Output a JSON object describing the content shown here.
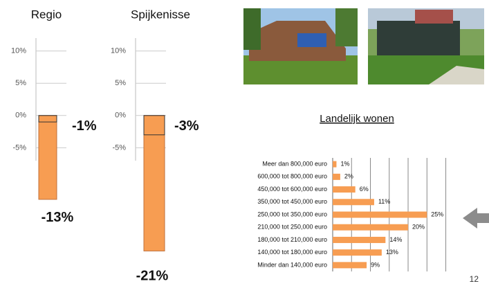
{
  "page_number": "12",
  "chart_data": [
    {
      "type": "bar",
      "title": "Regio",
      "series": [
        {
          "values": [
            -13
          ],
          "value_labels": [
            "-13%"
          ],
          "color": "#f79d52"
        },
        {
          "values": [
            -1
          ],
          "value_labels": [
            "-1%"
          ],
          "color": "#f79d52"
        }
      ],
      "ylim": [
        -7,
        12
      ],
      "yticks": [
        {
          "value": 10,
          "label": "10%"
        },
        {
          "value": 5,
          "label": "5%"
        },
        {
          "value": 0,
          "label": "0%"
        },
        {
          "value": -5,
          "label": "-5%"
        }
      ]
    },
    {
      "type": "bar",
      "title": "Spijkenisse",
      "series": [
        {
          "values": [
            -21
          ],
          "value_labels": [
            "-21%"
          ],
          "color": "#f79d52"
        },
        {
          "values": [
            -3
          ],
          "value_labels": [
            "-3%"
          ],
          "color": "#f79d52"
        }
      ],
      "ylim": [
        -7,
        12
      ],
      "yticks": [
        {
          "value": 10,
          "label": "10%"
        },
        {
          "value": 5,
          "label": "5%"
        },
        {
          "value": 0,
          "label": "0%"
        },
        {
          "value": -5,
          "label": "-5%"
        }
      ]
    },
    {
      "type": "barh",
      "title": "Landelijk wonen",
      "categories": [
        "Meer dan 800,000 euro",
        "600,000 tot 800,000 euro",
        "450,000 tot 600,000 euro",
        "350,000 tot 450,000 euro",
        "250,000 tot 350,000 euro",
        "210,000 tot 250,000 euro",
        "180,000 tot 210,000 euro",
        "140,000 tot 180,000 euro",
        "Minder dan 140,000 euro"
      ],
      "values": [
        1,
        2,
        6,
        11,
        25,
        20,
        14,
        13,
        9
      ],
      "value_labels": [
        "1%",
        "2%",
        "6%",
        "11%",
        "25%",
        "20%",
        "14%",
        "13%",
        "9%"
      ],
      "color": "#f79d52",
      "xlim": [
        0,
        31
      ],
      "xticks": [
        0,
        5,
        10,
        15,
        20,
        25,
        30
      ],
      "grid": true
    }
  ]
}
